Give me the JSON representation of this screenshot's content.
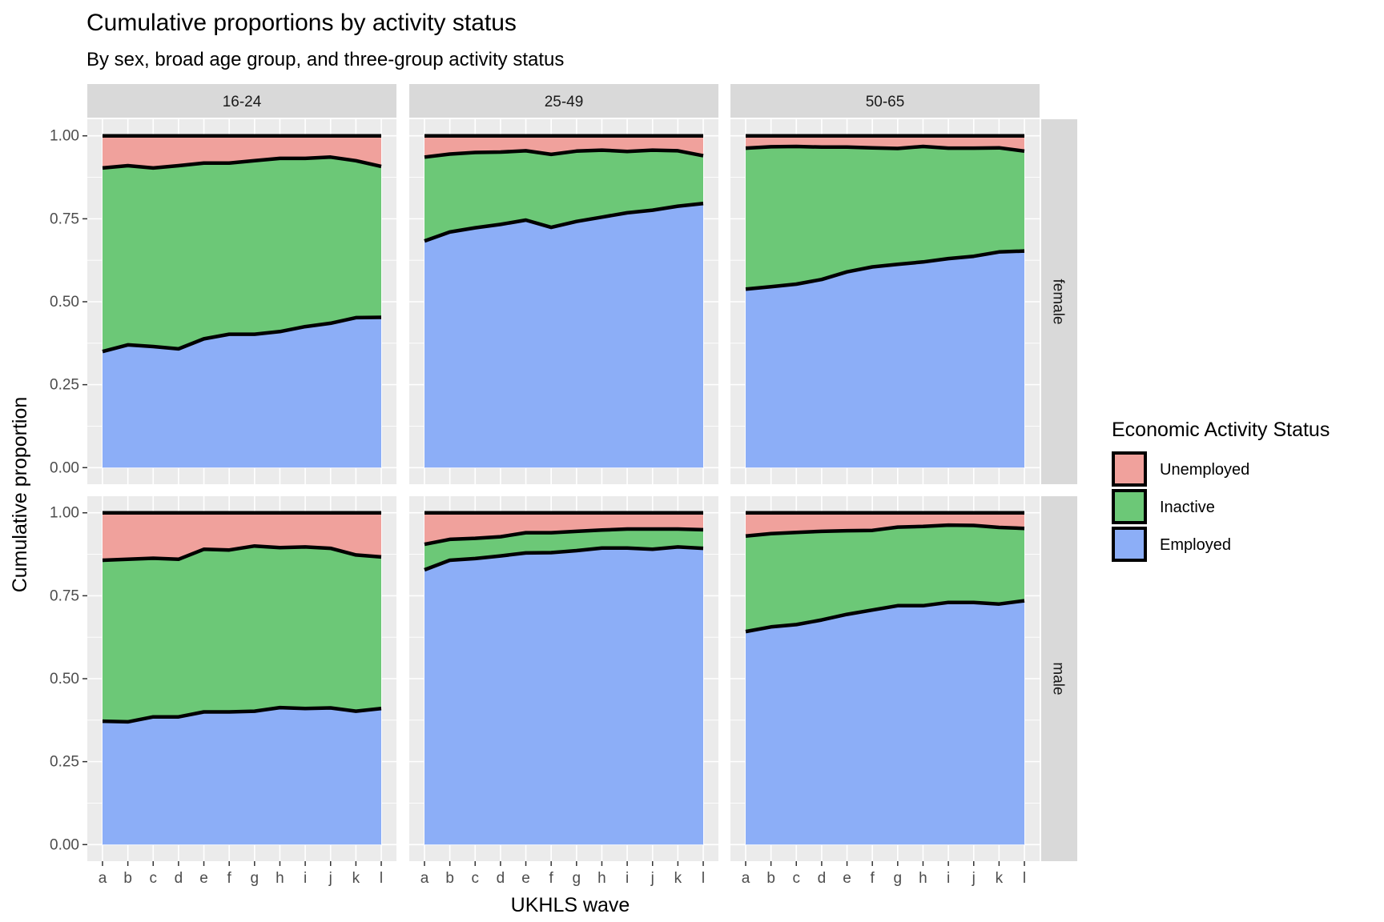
{
  "chart_data": {
    "type": "area",
    "title": "Cumulative proportions by activity status",
    "subtitle": "By sex, broad age group, and three-group activity status",
    "xlabel": "UKHLS wave",
    "ylabel": "Cumulative proportion",
    "ylim": [
      0,
      1
    ],
    "y_ticks": [
      "0.00",
      "0.25",
      "0.50",
      "0.75",
      "1.00"
    ],
    "x": [
      "a",
      "b",
      "c",
      "d",
      "e",
      "f",
      "g",
      "h",
      "i",
      "j",
      "k",
      "l"
    ],
    "grid": true,
    "legend": {
      "title": "Economic Activity Status",
      "position": "right",
      "entries": [
        {
          "name": "Unemployed",
          "color": "#F0A19C"
        },
        {
          "name": "Inactive",
          "color": "#6CC877"
        },
        {
          "name": "Employed",
          "color": "#8CAEF7"
        }
      ]
    },
    "col_facets": [
      "16-24",
      "25-49",
      "50-65"
    ],
    "row_facets": [
      "female",
      "male"
    ],
    "panels": [
      {
        "row": "female",
        "col": "16-24",
        "employed_cum": [
          0.35,
          0.37,
          0.365,
          0.358,
          0.388,
          0.402,
          0.402,
          0.41,
          0.425,
          0.435,
          0.452,
          0.453
        ],
        "inactive_cum": [
          0.903,
          0.91,
          0.903,
          0.91,
          0.918,
          0.918,
          0.925,
          0.932,
          0.932,
          0.936,
          0.925,
          0.908
        ],
        "unemployed_cum": [
          1,
          1,
          1,
          1,
          1,
          1,
          1,
          1,
          1,
          1,
          1,
          1
        ]
      },
      {
        "row": "female",
        "col": "25-49",
        "employed_cum": [
          0.683,
          0.71,
          0.723,
          0.733,
          0.746,
          0.724,
          0.742,
          0.755,
          0.768,
          0.776,
          0.788,
          0.796
        ],
        "inactive_cum": [
          0.936,
          0.945,
          0.95,
          0.951,
          0.955,
          0.944,
          0.954,
          0.957,
          0.953,
          0.957,
          0.955,
          0.94
        ],
        "unemployed_cum": [
          1,
          1,
          1,
          1,
          1,
          1,
          1,
          1,
          1,
          1,
          1,
          1
        ]
      },
      {
        "row": "female",
        "col": "50-65",
        "employed_cum": [
          0.538,
          0.545,
          0.553,
          0.567,
          0.59,
          0.605,
          0.613,
          0.62,
          0.63,
          0.637,
          0.65,
          0.653
        ],
        "inactive_cum": [
          0.963,
          0.967,
          0.968,
          0.966,
          0.966,
          0.964,
          0.962,
          0.968,
          0.963,
          0.963,
          0.964,
          0.954
        ],
        "unemployed_cum": [
          1,
          1,
          1,
          1,
          1,
          1,
          1,
          1,
          1,
          1,
          1,
          1
        ]
      },
      {
        "row": "male",
        "col": "16-24",
        "employed_cum": [
          0.372,
          0.37,
          0.385,
          0.385,
          0.4,
          0.4,
          0.402,
          0.413,
          0.41,
          0.412,
          0.402,
          0.41
        ],
        "inactive_cum": [
          0.857,
          0.86,
          0.863,
          0.86,
          0.89,
          0.888,
          0.9,
          0.895,
          0.897,
          0.893,
          0.873,
          0.867
        ],
        "unemployed_cum": [
          1,
          1,
          1,
          1,
          1,
          1,
          1,
          1,
          1,
          1,
          1,
          1
        ]
      },
      {
        "row": "male",
        "col": "25-49",
        "employed_cum": [
          0.828,
          0.857,
          0.862,
          0.87,
          0.879,
          0.88,
          0.886,
          0.894,
          0.894,
          0.89,
          0.897,
          0.893
        ],
        "inactive_cum": [
          0.905,
          0.92,
          0.923,
          0.928,
          0.94,
          0.94,
          0.944,
          0.948,
          0.951,
          0.951,
          0.951,
          0.949
        ],
        "unemployed_cum": [
          1,
          1,
          1,
          1,
          1,
          1,
          1,
          1,
          1,
          1,
          1,
          1
        ]
      },
      {
        "row": "male",
        "col": "50-65",
        "employed_cum": [
          0.642,
          0.656,
          0.663,
          0.677,
          0.694,
          0.707,
          0.72,
          0.72,
          0.73,
          0.73,
          0.725,
          0.735
        ],
        "inactive_cum": [
          0.93,
          0.937,
          0.941,
          0.944,
          0.946,
          0.947,
          0.957,
          0.959,
          0.963,
          0.962,
          0.956,
          0.953
        ],
        "unemployed_cum": [
          1,
          1,
          1,
          1,
          1,
          1,
          1,
          1,
          1,
          1,
          1,
          1
        ]
      }
    ]
  }
}
